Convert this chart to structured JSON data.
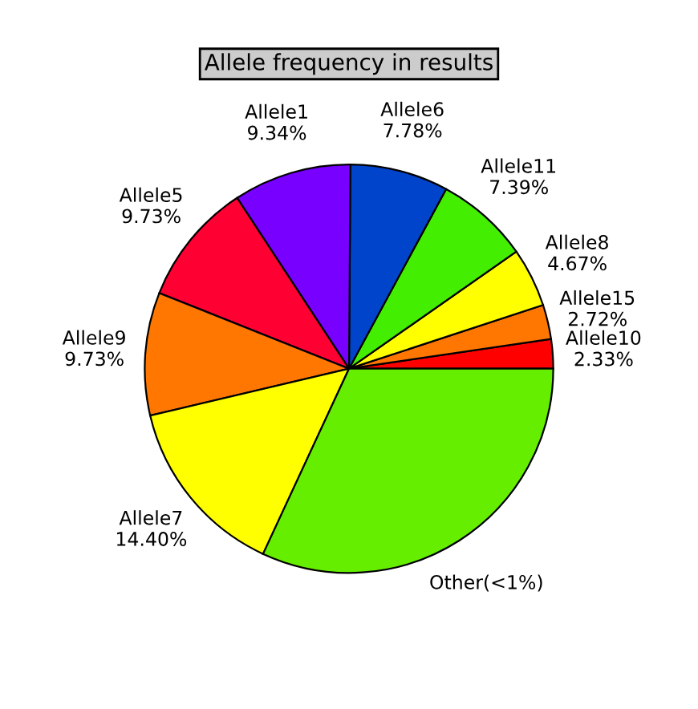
{
  "chart_data": {
    "type": "pie",
    "title": "Allele frequency in results",
    "categories": [
      "Allele10",
      "Allele15",
      "Allele8",
      "Allele11",
      "Allele6",
      "Allele1",
      "Allele5",
      "Allele9",
      "Allele7",
      "Other(<1%)"
    ],
    "values": [
      2.33,
      2.72,
      4.67,
      7.39,
      7.78,
      9.34,
      9.73,
      9.73,
      14.4,
      31.91
    ],
    "value_labels": [
      "2.33%",
      "2.72%",
      "4.67%",
      "7.39%",
      "7.78%",
      "9.34%",
      "9.73%",
      "9.73%",
      "14.40%",
      null
    ],
    "colors": [
      "#ff0000",
      "#ff7700",
      "#ffff00",
      "#44ee00",
      "#0044cc",
      "#7700ff",
      "#ff0033",
      "#ff7700",
      "#ffff00",
      "#66ee00"
    ]
  }
}
